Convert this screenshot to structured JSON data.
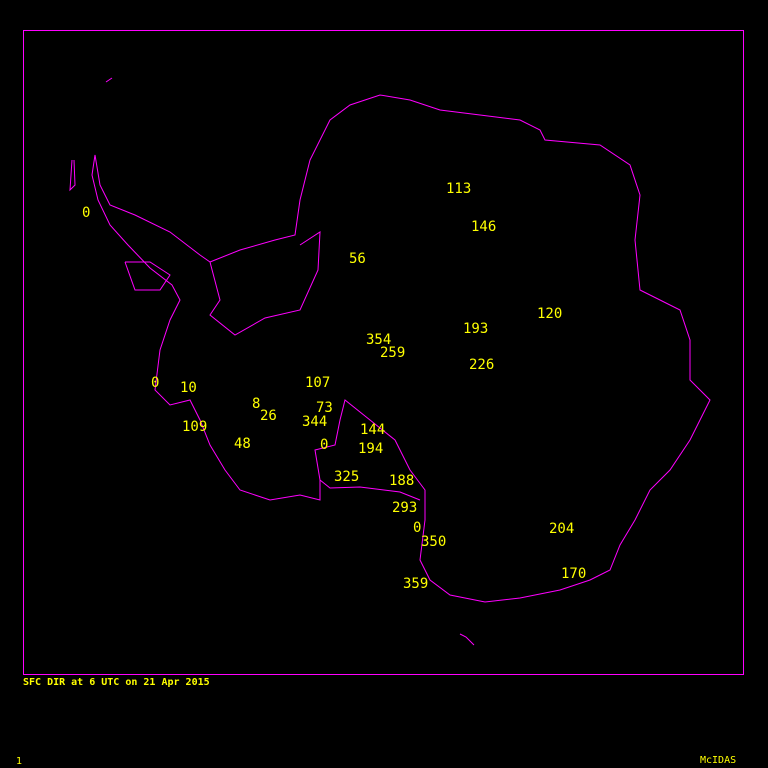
{
  "caption": "SFC DIR at 6 UTC on 21 Apr 2015",
  "frame_number": "1",
  "software": "McIDAS",
  "colors": {
    "background": "#000000",
    "coastline": "#ff00ff",
    "text": "#ffff00",
    "frame": "#ff00ff"
  },
  "stations": [
    {
      "value": "113"
    },
    {
      "value": "146"
    },
    {
      "value": "56"
    },
    {
      "value": "0"
    },
    {
      "value": "120"
    },
    {
      "value": "193"
    },
    {
      "value": "354"
    },
    {
      "value": "259"
    },
    {
      "value": "226"
    },
    {
      "value": "0"
    },
    {
      "value": "10"
    },
    {
      "value": "107"
    },
    {
      "value": "8"
    },
    {
      "value": "26"
    },
    {
      "value": "73"
    },
    {
      "value": "344"
    },
    {
      "value": "109"
    },
    {
      "value": "144"
    },
    {
      "value": "48"
    },
    {
      "value": "0"
    },
    {
      "value": "194"
    },
    {
      "value": "325"
    },
    {
      "value": "188"
    },
    {
      "value": "293"
    },
    {
      "value": "0"
    },
    {
      "value": "350"
    },
    {
      "value": "204"
    },
    {
      "value": "170"
    },
    {
      "value": "359"
    }
  ]
}
